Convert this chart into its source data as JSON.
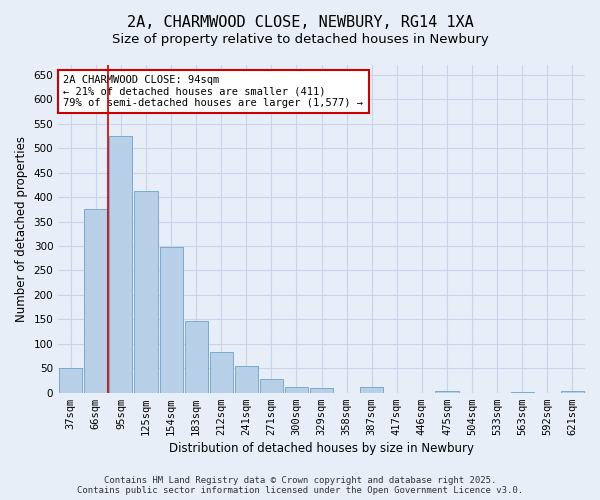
{
  "title": "2A, CHARMWOOD CLOSE, NEWBURY, RG14 1XA",
  "subtitle": "Size of property relative to detached houses in Newbury",
  "xlabel": "Distribution of detached houses by size in Newbury",
  "ylabel": "Number of detached properties",
  "categories": [
    "37sqm",
    "66sqm",
    "95sqm",
    "125sqm",
    "154sqm",
    "183sqm",
    "212sqm",
    "241sqm",
    "271sqm",
    "300sqm",
    "329sqm",
    "358sqm",
    "387sqm",
    "417sqm",
    "446sqm",
    "475sqm",
    "504sqm",
    "533sqm",
    "563sqm",
    "592sqm",
    "621sqm"
  ],
  "values": [
    50,
    375,
    525,
    413,
    297,
    147,
    83,
    55,
    27,
    11,
    10,
    0,
    12,
    0,
    0,
    3,
    0,
    0,
    2,
    0,
    3
  ],
  "bar_color": "#b8cfe8",
  "bar_edge_color": "#7aaad0",
  "grid_color": "#c8d4e8",
  "background_color": "#e8eef8",
  "vline_color": "#cc0000",
  "annotation_text": "2A CHARMWOOD CLOSE: 94sqm\n← 21% of detached houses are smaller (411)\n79% of semi-detached houses are larger (1,577) →",
  "annotation_box_color": "#ffffff",
  "annotation_box_edge": "#cc0000",
  "ylim": [
    0,
    670
  ],
  "yticks": [
    0,
    50,
    100,
    150,
    200,
    250,
    300,
    350,
    400,
    450,
    500,
    550,
    600,
    650
  ],
  "footer": "Contains HM Land Registry data © Crown copyright and database right 2025.\nContains public sector information licensed under the Open Government Licence v3.0.",
  "title_fontsize": 11,
  "subtitle_fontsize": 9.5,
  "axis_label_fontsize": 8.5,
  "tick_fontsize": 7.5,
  "annotation_fontsize": 7.5
}
